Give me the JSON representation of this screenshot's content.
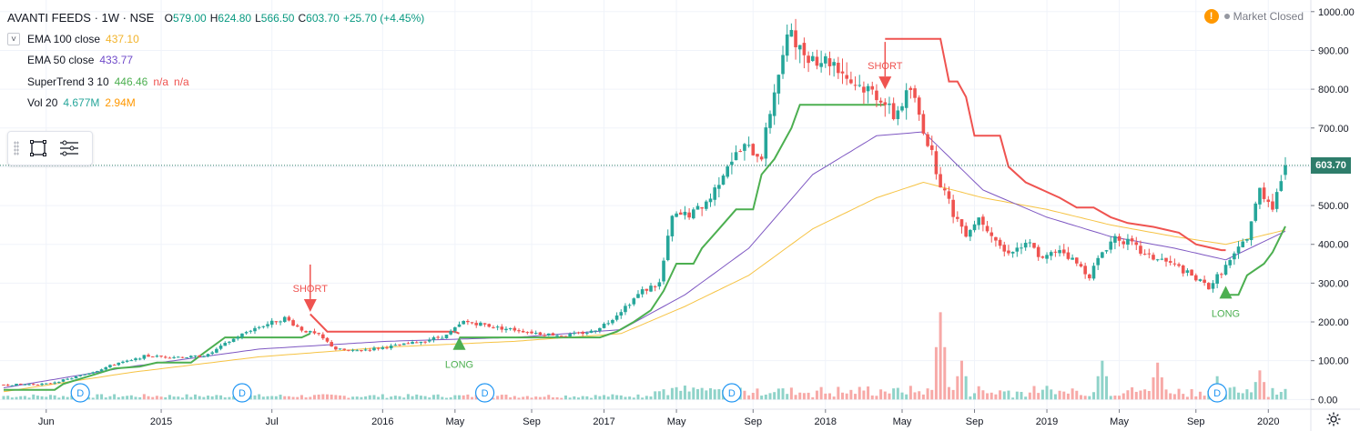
{
  "header": {
    "symbol": "AVANTI FEEDS · 1W · NSE",
    "ohlc": [
      {
        "label": "O",
        "value": "579.00"
      },
      {
        "label": "H",
        "value": "624.80"
      },
      {
        "label": "L",
        "value": "566.50"
      },
      {
        "label": "C",
        "value": "603.70"
      },
      {
        "label": "",
        "value": "+25.70 (+4.45%)"
      }
    ],
    "market_status": "Market Closed"
  },
  "indicators": [
    {
      "name": "EMA 100 close",
      "values": [
        "437.10"
      ],
      "colors": [
        "#f2b32b"
      ]
    },
    {
      "name": "EMA 50 close",
      "values": [
        "433.77"
      ],
      "colors": [
        "#6f4ac9"
      ]
    },
    {
      "name": "SuperTrend 3 10",
      "values": [
        "446.46",
        "n/a",
        "n/a"
      ],
      "colors": [
        "#4caf50",
        "#ef5350",
        "#ef5350"
      ]
    },
    {
      "name": "Vol 20",
      "values": [
        "4.677M",
        "2.94M"
      ],
      "colors": [
        "#26a69a",
        "#ff9800"
      ]
    }
  ],
  "toolbar": {
    "icons": [
      "rectangle-select-icon",
      "object-tree-icon"
    ]
  },
  "colors": {
    "up": "#26a69a",
    "down": "#ef5350",
    "ema100": "#f6c343",
    "ema50": "#7e57c2",
    "st_up": "#4caf50",
    "st_down": "#ef5350",
    "vol_up": "#8fd3c9",
    "vol_down": "#f7a9a7",
    "grid": "#f0f3fa",
    "last_price_line": "#2e7d6b",
    "dividend": "#2196f3"
  },
  "current_price": "603.70",
  "chart_data": {
    "type": "candlestick",
    "title": "AVANTI FEEDS · 1W · NSE",
    "y_axis": {
      "ticks": [
        "1000.00",
        "900.00",
        "800.00",
        "700.00",
        "600.00",
        "500.00",
        "400.00",
        "300.00",
        "200.00",
        "100.00",
        "0.00"
      ],
      "ylim": [
        -25,
        1030
      ]
    },
    "x_axis": {
      "ticks": [
        {
          "label": "Jun",
          "w": 10
        },
        {
          "label": "2015",
          "w": 37
        },
        {
          "label": "Jul",
          "w": 63
        },
        {
          "label": "2016",
          "w": 89
        },
        {
          "label": "May",
          "w": 106
        },
        {
          "label": "Sep",
          "w": 124
        },
        {
          "label": "2017",
          "w": 141
        },
        {
          "label": "May",
          "w": 158
        },
        {
          "label": "Sep",
          "w": 176
        },
        {
          "label": "2018",
          "w": 193
        },
        {
          "label": "May",
          "w": 211
        },
        {
          "label": "Sep",
          "w": 228
        },
        {
          "label": "2019",
          "w": 245
        },
        {
          "label": "May",
          "w": 262
        },
        {
          "label": "Sep",
          "w": 280
        },
        {
          "label": "2020",
          "w": 297
        }
      ],
      "week_range": [
        0,
        301
      ]
    },
    "price_anchors": [
      [
        0,
        38
      ],
      [
        10,
        40
      ],
      [
        16,
        55
      ],
      [
        22,
        75
      ],
      [
        27,
        95
      ],
      [
        30,
        100
      ],
      [
        33,
        112
      ],
      [
        38,
        110
      ],
      [
        44,
        110
      ],
      [
        48,
        115
      ],
      [
        53,
        150
      ],
      [
        58,
        180
      ],
      [
        62,
        195
      ],
      [
        66,
        210
      ],
      [
        70,
        180
      ],
      [
        74,
        165
      ],
      [
        78,
        130
      ],
      [
        82,
        125
      ],
      [
        86,
        130
      ],
      [
        90,
        135
      ],
      [
        96,
        145
      ],
      [
        104,
        165
      ],
      [
        108,
        200
      ],
      [
        112,
        195
      ],
      [
        116,
        185
      ],
      [
        120,
        180
      ],
      [
        126,
        170
      ],
      [
        132,
        165
      ],
      [
        138,
        175
      ],
      [
        142,
        200
      ],
      [
        146,
        240
      ],
      [
        150,
        280
      ],
      [
        154,
        300
      ],
      [
        157,
        470
      ],
      [
        162,
        480
      ],
      [
        166,
        520
      ],
      [
        170,
        610
      ],
      [
        174,
        650
      ],
      [
        178,
        630
      ],
      [
        181,
        800
      ],
      [
        185,
        960
      ],
      [
        187,
        900
      ],
      [
        191,
        880
      ],
      [
        195,
        870
      ],
      [
        199,
        820
      ],
      [
        203,
        800
      ],
      [
        206,
        780
      ],
      [
        209,
        730
      ],
      [
        213,
        800
      ],
      [
        216,
        700
      ],
      [
        220,
        560
      ],
      [
        223,
        480
      ],
      [
        226,
        430
      ],
      [
        229,
        470
      ],
      [
        232,
        430
      ],
      [
        235,
        380
      ],
      [
        238,
        390
      ],
      [
        241,
        400
      ],
      [
        244,
        360
      ],
      [
        248,
        390
      ],
      [
        252,
        350
      ],
      [
        255,
        320
      ],
      [
        258,
        380
      ],
      [
        261,
        420
      ],
      [
        265,
        400
      ],
      [
        268,
        370
      ],
      [
        272,
        360
      ],
      [
        276,
        340
      ],
      [
        280,
        310
      ],
      [
        283,
        290
      ],
      [
        286,
        330
      ],
      [
        289,
        370
      ],
      [
        292,
        420
      ],
      [
        295,
        540
      ],
      [
        298,
        500
      ],
      [
        301,
        603.7
      ]
    ],
    "ema100_anchors": [
      [
        0,
        20
      ],
      [
        30,
        70
      ],
      [
        60,
        110
      ],
      [
        90,
        135
      ],
      [
        120,
        150
      ],
      [
        145,
        170
      ],
      [
        160,
        240
      ],
      [
        175,
        320
      ],
      [
        190,
        440
      ],
      [
        205,
        520
      ],
      [
        216,
        560
      ],
      [
        230,
        520
      ],
      [
        245,
        490
      ],
      [
        260,
        450
      ],
      [
        275,
        420
      ],
      [
        287,
        400
      ],
      [
        301,
        437.1
      ]
    ],
    "ema50_anchors": [
      [
        0,
        30
      ],
      [
        30,
        85
      ],
      [
        60,
        130
      ],
      [
        90,
        150
      ],
      [
        120,
        160
      ],
      [
        145,
        180
      ],
      [
        160,
        270
      ],
      [
        175,
        390
      ],
      [
        190,
        580
      ],
      [
        205,
        680
      ],
      [
        216,
        690
      ],
      [
        230,
        540
      ],
      [
        245,
        470
      ],
      [
        260,
        420
      ],
      [
        275,
        390
      ],
      [
        287,
        360
      ],
      [
        301,
        433.77
      ]
    ],
    "supertrend": [
      {
        "trend": "up",
        "points": [
          [
            0,
            25
          ],
          [
            12,
            25
          ],
          [
            14,
            40
          ],
          [
            26,
            80
          ],
          [
            32,
            85
          ],
          [
            36,
            95
          ],
          [
            44,
            95
          ],
          [
            47,
            120
          ],
          [
            52,
            160
          ],
          [
            58,
            160
          ],
          [
            62,
            160
          ],
          [
            70,
            160
          ],
          [
            72,
            170
          ]
        ]
      },
      {
        "trend": "down",
        "points": [
          [
            72,
            220
          ],
          [
            76,
            175
          ],
          [
            106,
            175
          ],
          [
            107,
            170
          ]
        ]
      },
      {
        "trend": "up",
        "points": [
          [
            107,
            160
          ],
          [
            110,
            160
          ],
          [
            140,
            160
          ],
          [
            144,
            175
          ],
          [
            148,
            200
          ],
          [
            152,
            230
          ],
          [
            155,
            280
          ],
          [
            158,
            350
          ],
          [
            162,
            350
          ],
          [
            164,
            390
          ],
          [
            168,
            440
          ],
          [
            172,
            490
          ],
          [
            176,
            490
          ],
          [
            178,
            580
          ],
          [
            181,
            620
          ],
          [
            185,
            700
          ],
          [
            187,
            760
          ],
          [
            198,
            760
          ],
          [
            205,
            760
          ],
          [
            207,
            760
          ]
        ]
      },
      {
        "trend": "down",
        "points": [
          [
            207,
            930
          ],
          [
            210,
            930
          ],
          [
            213,
            930
          ],
          [
            216,
            930
          ],
          [
            220,
            930
          ],
          [
            222,
            820
          ],
          [
            224,
            820
          ],
          [
            226,
            780
          ],
          [
            228,
            680
          ],
          [
            234,
            680
          ],
          [
            236,
            600
          ],
          [
            240,
            560
          ],
          [
            244,
            540
          ],
          [
            248,
            520
          ],
          [
            252,
            495
          ],
          [
            256,
            495
          ],
          [
            260,
            470
          ],
          [
            264,
            455
          ],
          [
            270,
            445
          ],
          [
            276,
            430
          ],
          [
            280,
            400
          ],
          [
            284,
            390
          ],
          [
            286,
            385
          ],
          [
            287,
            385
          ]
        ]
      },
      {
        "trend": "up",
        "points": [
          [
            287,
            270
          ],
          [
            290,
            270
          ],
          [
            292,
            320
          ],
          [
            296,
            350
          ],
          [
            298,
            380
          ],
          [
            301,
            446.46
          ]
        ]
      }
    ],
    "signals": [
      {
        "label": "SHORT",
        "week": 72,
        "price": 226,
        "type": "short"
      },
      {
        "label": "LONG",
        "week": 107,
        "price": 128,
        "type": "long"
      },
      {
        "label": "SHORT",
        "week": 207,
        "price": 800,
        "type": "short"
      },
      {
        "label": "LONG",
        "week": 287,
        "price": 260,
        "type": "long"
      }
    ],
    "dividends": [
      {
        "label": "D",
        "week": 18
      },
      {
        "label": "D",
        "week": 56
      },
      {
        "label": "D",
        "week": 113
      },
      {
        "label": "D",
        "week": 171
      },
      {
        "label": "D",
        "week": 285
      }
    ],
    "volume_peaks": [
      [
        220,
        225
      ],
      [
        225,
        100
      ],
      [
        258,
        100
      ],
      [
        271,
        95
      ],
      [
        285,
        60
      ],
      [
        295,
        75
      ]
    ]
  }
}
